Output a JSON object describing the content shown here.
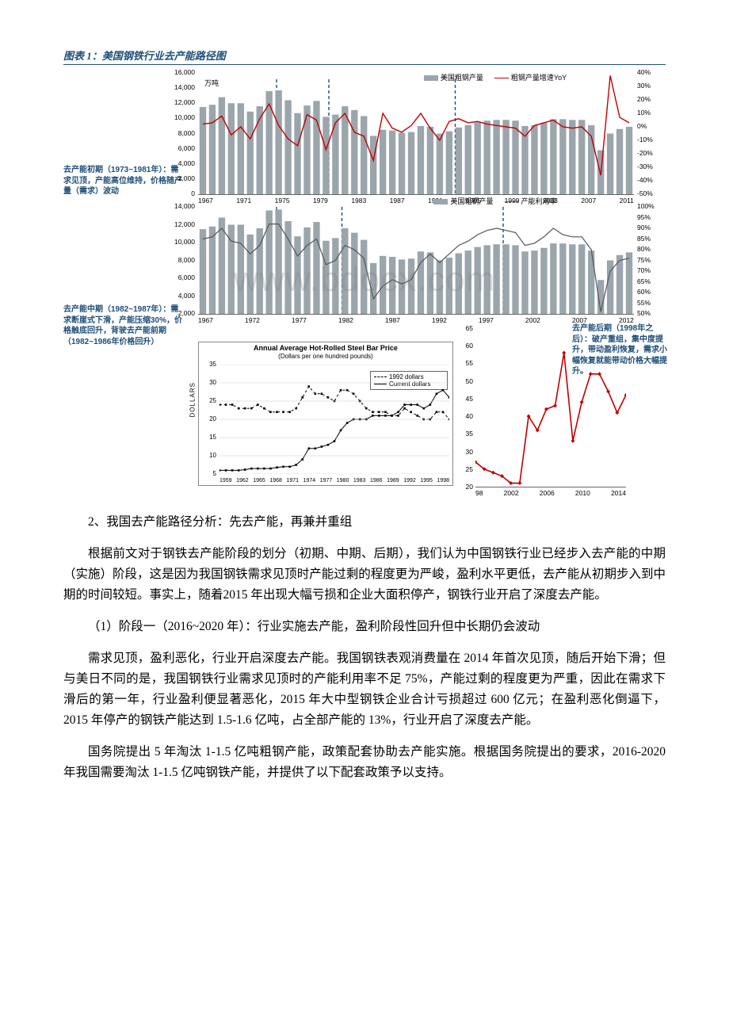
{
  "chartTitle": "图表 1：美国钢铁行业去产能路径图",
  "watermark": "www.bdocx.com",
  "annotations": {
    "leftTop": "去产能初期（1973~1981年）：需求见顶，产能高位维持，价格随产量（需求）波动",
    "leftMid": "去产能中期（1982~1987年）：需求断崖式下滑，产能压缩30%，价格触底回升，背驶去产能前期（1982~1986年价格回升）",
    "right": "去产能后期（1998年之后）：破产重组，集中度提升，带动盈利恢复，需求小幅恢复就能带动价格大幅提升。"
  },
  "topChart": {
    "type": "bar+line",
    "unit": "万吨",
    "legend": {
      "bar": "美国粗钢产量",
      "line": "粗钢产量增速YoY"
    },
    "bar_color": "#9aa5ac",
    "line_color": "#c00000",
    "sep_positions_pct": [
      18,
      30,
      59
    ],
    "y_left": {
      "min": 0,
      "max": 16000,
      "step": 2000
    },
    "y_right": {
      "min": -50,
      "max": 40,
      "step": 10,
      "suffix": "%"
    },
    "x_ticks": [
      "1967",
      "1971",
      "1975",
      "1979",
      "1983",
      "1987",
      "1991",
      "1995",
      "1999",
      "2003",
      "2007",
      "2011"
    ],
    "bars": [
      11500,
      11800,
      12800,
      12000,
      12000,
      10900,
      11600,
      13600,
      13700,
      12400,
      10700,
      11700,
      12300,
      10200,
      10500,
      11600,
      11100,
      10300,
      7700,
      8500,
      8400,
      8100,
      8200,
      9000,
      8900,
      8000,
      8300,
      8800,
      9100,
      9500,
      9700,
      9800,
      9800,
      9700,
      9000,
      9100,
      9400,
      9900,
      9900,
      9800,
      9800,
      9100,
      5800,
      8000,
      8600,
      8900
    ],
    "line_yoy": [
      2,
      3,
      8,
      -6,
      0,
      -9,
      6,
      17,
      1,
      -9,
      -14,
      9,
      5,
      -17,
      3,
      10,
      -4,
      -7,
      -25,
      10,
      -1,
      -4,
      1,
      10,
      -1,
      -10,
      4,
      6,
      3,
      4,
      2,
      1,
      0,
      -1,
      -7,
      1,
      3,
      5,
      0,
      -1,
      0,
      -7,
      -36,
      38,
      7,
      3
    ]
  },
  "midChart": {
    "type": "bar+line",
    "bar_color": "#9aa5ac",
    "line_color": "#9aa5ac",
    "legend": {
      "bar": "美国粗钢产量",
      "line": "产能利用率"
    },
    "y_left": {
      "min": 2000,
      "max": 14000,
      "step": 2000
    },
    "y_right": {
      "min": 50,
      "max": 100,
      "step": 5,
      "suffix": "%"
    },
    "x_ticks": [
      "1967",
      "1972",
      "1977",
      "1982",
      "1987",
      "1992",
      "1997",
      "2002",
      "2007",
      "2012"
    ],
    "bars": [
      11500,
      11800,
      12800,
      12000,
      12000,
      10900,
      11600,
      13600,
      13700,
      12400,
      10700,
      11700,
      12300,
      10200,
      10500,
      11600,
      11100,
      10300,
      7700,
      8500,
      8400,
      8100,
      8200,
      9000,
      8900,
      8000,
      8300,
      8800,
      9100,
      9500,
      9700,
      9800,
      9800,
      9700,
      9000,
      9100,
      9400,
      9900,
      9900,
      9800,
      9800,
      9100,
      5800,
      8000,
      8600,
      8900
    ],
    "util": [
      85,
      86,
      90,
      84,
      83,
      78,
      82,
      92,
      92,
      85,
      77,
      82,
      85,
      73,
      75,
      82,
      80,
      76,
      57,
      63,
      66,
      64,
      66,
      74,
      78,
      74,
      78,
      82,
      84,
      87,
      89,
      90,
      89,
      88,
      82,
      83,
      86,
      90,
      87,
      86,
      86,
      80,
      51,
      70,
      75,
      76
    ],
    "sep_positions_pct": [
      18,
      33,
      70
    ]
  },
  "bottomLeft": {
    "type": "line-dual",
    "title_line1": "Annual Average Hot-Rolled Steel Bar Price",
    "title_line2": "(Dollars per one hundred pounds)",
    "title_color": "#1f4e79",
    "y_label": "DOLLARS",
    "y_left": {
      "min": 5,
      "max": 35,
      "step": 5
    },
    "x_ticks": [
      "1959",
      "1962",
      "1965",
      "1968",
      "1971",
      "1974",
      "1977",
      "1980",
      "1983",
      "1986",
      "1989",
      "1992",
      "1995",
      "1998"
    ],
    "legend": {
      "a": "1992 dollars",
      "b": "Current dollars"
    },
    "series_a_color": "#000000",
    "series_a_style": "dash-square",
    "series_b_color": "#000000",
    "series_b_style": "solid-square",
    "series_a": [
      24,
      24,
      24,
      23,
      23,
      23,
      24,
      23,
      22,
      22,
      22,
      22,
      23,
      26,
      29,
      27,
      27,
      26,
      25,
      28,
      28,
      27,
      25,
      23,
      22,
      22,
      22,
      21,
      21,
      23,
      22,
      21,
      20,
      20,
      22,
      22,
      20
    ],
    "series_b": [
      6,
      6,
      6,
      6,
      6.2,
      6.5,
      6.5,
      6.5,
      6.5,
      6.8,
      7,
      7,
      7.5,
      9,
      12,
      12,
      12.5,
      13,
      14,
      17,
      19,
      20,
      20,
      20,
      21,
      21,
      21,
      21,
      22,
      24,
      24,
      24,
      23,
      24,
      27,
      28,
      26
    ]
  },
  "bottomRight": {
    "type": "line",
    "line_color": "#c00000",
    "y_left": {
      "min": 20,
      "max": 65,
      "step": 5
    },
    "x_ticks": [
      "98",
      "2002",
      "2006",
      "2010",
      "2014"
    ],
    "data": [
      27,
      25,
      24,
      23,
      21,
      21,
      40,
      36,
      42,
      43,
      58,
      33,
      44,
      52,
      52,
      47,
      41,
      46
    ]
  },
  "body": {
    "hdr2": "2、我国去产能路径分析：先去产能，再兼并重组",
    "p1": "根据前文对于钢铁去产能阶段的划分（初期、中期、后期），我们认为中国钢铁行业已经步入去产能的中期（实施）阶段，这是因为我国钢铁需求见顶时产能过剩的程度更为严峻，盈利水平更低，去产能从初期步入到中期的时间较短。事实上，随着2015 年出现大幅亏损和企业大面积停产，钢铁行业开启了深度去产能。",
    "p2_label": "（1）阶段一（2016~2020 年）：行业实施去产能，盈利阶段性回升但中长期仍会波动",
    "p3": "需求见顶，盈利恶化，行业开启深度去产能。我国钢铁表观消费量在 2014 年首次见顶，随后开始下滑；但与美日不同的是，我国钢铁行业需求见顶时的产能利用率不足 75%，产能过剩的程度更为严重，因此在需求下滑后的第一年，行业盈利便显著恶化，2015 年大中型钢铁企业合计亏损超过 600 亿元；在盈利恶化倒逼下，2015 年停产的钢铁产能达到 1.5-1.6 亿吨，占全部产能的 13%，行业开启了深度去产能。",
    "p4": "国务院提出 5 年淘汰 1-1.5 亿吨粗钢产能，政策配套协助去产能实施。根据国务院提出的要求，2016-2020 年我国需要淘汰 1-1.5 亿吨钢铁产能，并提供了以下配套政策予以支持。"
  }
}
